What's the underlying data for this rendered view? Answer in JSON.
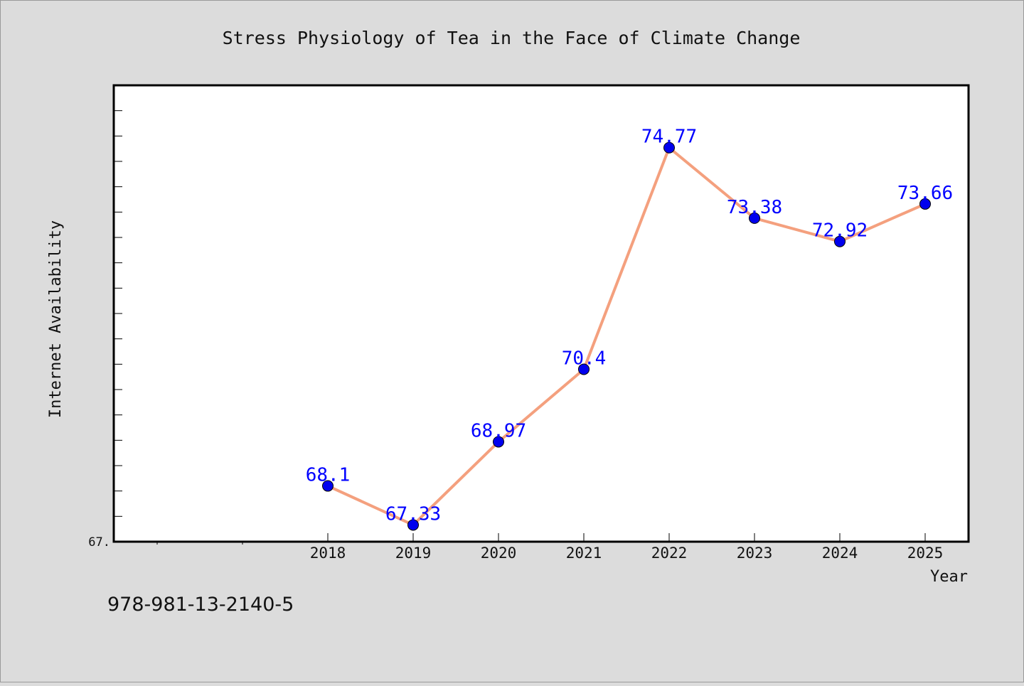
{
  "chart_data": {
    "type": "line",
    "title": "Stress Physiology of Tea in the Face of Climate Change",
    "xlabel": "Year",
    "ylabel": "Internet Availability",
    "categories": [
      "2018",
      "2019",
      "2020",
      "2021",
      "2022",
      "2023",
      "2024",
      "2025"
    ],
    "series": [
      {
        "values": [
          68.1,
          67.33,
          68.97,
          70.4,
          74.77,
          73.38,
          72.92,
          73.66
        ]
      }
    ],
    "data_labels": [
      "68.1",
      "67.33",
      "68.97",
      "70.4",
      "74.77",
      "73.38",
      "72.92",
      "73.66"
    ],
    "ylim": [
      67.0,
      76.0
    ],
    "y_tick_label": "67.",
    "grid": false,
    "colors": {
      "line": "#f4a07e",
      "marker": "#0000ee",
      "label": "#0000ff"
    }
  },
  "caption": "978-981-13-2140-5"
}
